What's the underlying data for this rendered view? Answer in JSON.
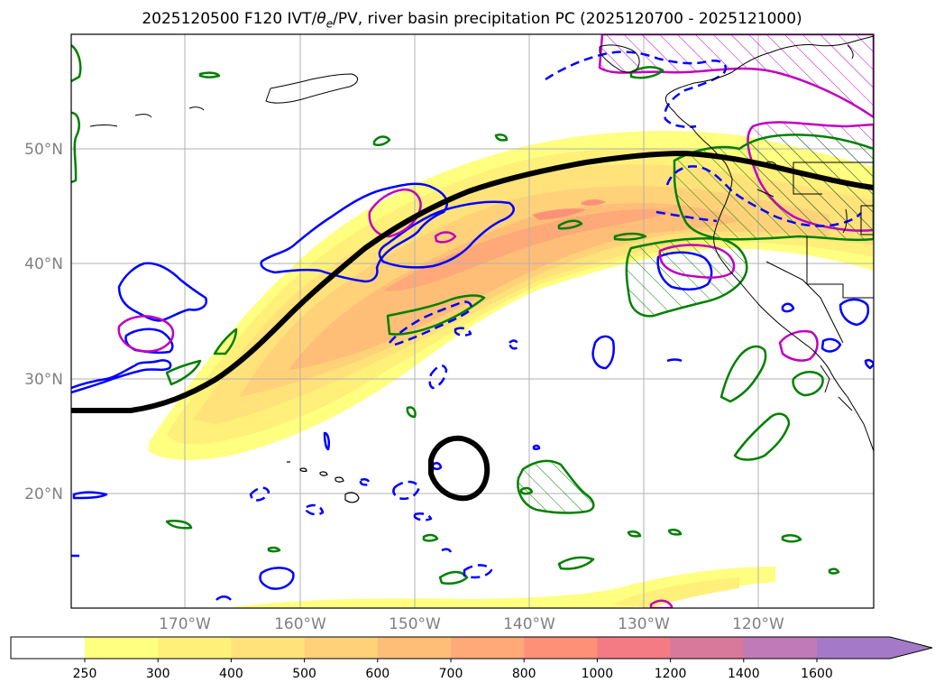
{
  "title": {
    "prefix": "2025120500 F120 IVT/",
    "theta": "θ",
    "theta_sub": "e",
    "suffix": "/PV, river basin precipitation PC (2025120700 - 2025121000)"
  },
  "lon_ticks": [
    "170°W",
    "160°W",
    "150°W",
    "140°W",
    "130°W",
    "120°W"
  ],
  "lat_ticks": [
    "50°N",
    "40°N",
    "30°N",
    "20°N"
  ],
  "colorbar": {
    "ticks": [
      "250",
      "300",
      "400",
      "500",
      "600",
      "700",
      "800",
      "1000",
      "1200",
      "1400",
      "1600"
    ],
    "colors": [
      "#ffff80",
      "#fff07a",
      "#ffe27a",
      "#ffd27a",
      "#ffbe78",
      "#ffa878",
      "#ff9078",
      "#f47a84",
      "#d8789a",
      "#c07ab8",
      "#a47ac8"
    ],
    "extend": "max"
  },
  "colors": {
    "ivt_jet_line": "#000000",
    "pv_contour": "#0000ff",
    "theta_e_contour": "#008000",
    "precip_contour": "#c000c0",
    "gridline": "#b0b0b0",
    "tick_label": "#808080"
  }
}
